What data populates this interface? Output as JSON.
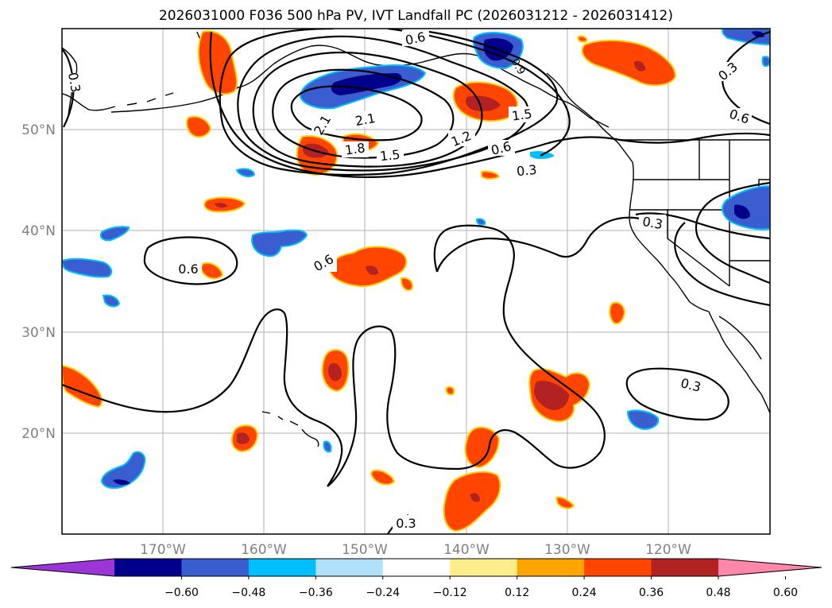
{
  "title": "2026031000 F036 500 hPa PV, IVT Landfall PC (2026031212 - 2026031412)",
  "lat_labels": [
    "50°N",
    "40°N",
    "30°N",
    "20°N"
  ],
  "lon_labels": [
    "170°W",
    "160°W",
    "150°W",
    "140°W",
    "130°W",
    "120°W"
  ],
  "contour_labels": [
    "0.3",
    "0.6",
    "2.1",
    "2.1",
    "1.8",
    "1.5",
    "1.2",
    "1.5",
    "0.6",
    "0.3",
    "0.3",
    "0.6",
    "0.6",
    "0.3",
    "0.6",
    "0.3",
    "0.3",
    "0.9"
  ],
  "colorbar": {
    "ticks": [
      "−0.60",
      "−0.48",
      "−0.36",
      "−0.24",
      "−0.12",
      "0.12",
      "0.24",
      "0.36",
      "0.48",
      "0.60"
    ],
    "colors": [
      "#9b35d6",
      "#00008b",
      "#3a5ed0",
      "#00bfff",
      "#b0e0fa",
      "#ffffff",
      "#ffec8b",
      "#ffa500",
      "#ff4500",
      "#b22222",
      "#ff88aa"
    ]
  },
  "palette": {
    "red_fill": "#ff4500",
    "dark_red": "#b22222",
    "blue_fill": "#3a5ed0",
    "navy": "#00008b",
    "cyan": "#00bfff",
    "yellow": "#ffd000"
  }
}
